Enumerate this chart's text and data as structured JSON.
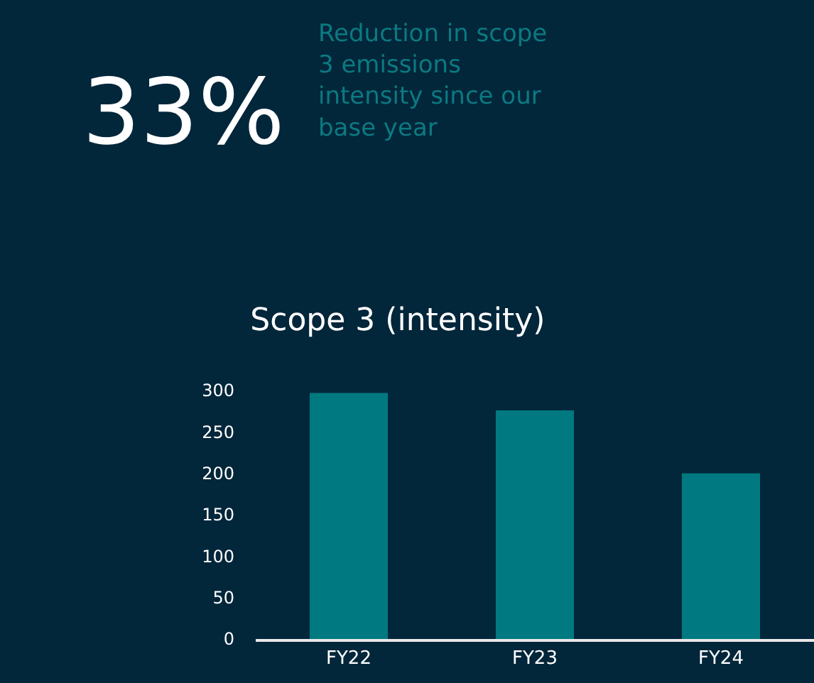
{
  "chart_data": {
    "type": "bar",
    "title": "Scope 3 (intensity)",
    "categories": [
      "FY22",
      "FY23",
      "FY24"
    ],
    "values": [
      297,
      276,
      200
    ],
    "color": "#007a80",
    "ylim": [
      0,
      300
    ],
    "yticks": [
      0,
      50,
      100,
      150,
      200,
      250,
      300
    ],
    "grid": false,
    "annotations": [
      "33%",
      "Reduction in scope\n3 emissions\nintensity since our\nbase year"
    ]
  }
}
